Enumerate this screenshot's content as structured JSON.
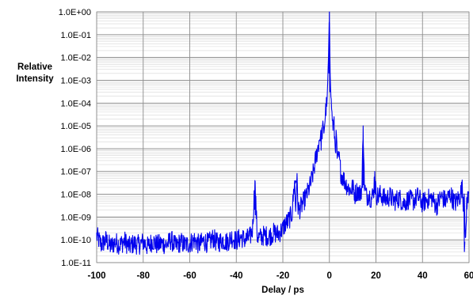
{
  "chart_data": {
    "type": "line",
    "xlabel": "Delay / ps",
    "ylabel_lines": [
      "Relative",
      "Intensity"
    ],
    "xlim": [
      -100,
      60
    ],
    "ylim": [
      1e-11,
      1
    ],
    "y_scale": "log",
    "grid": "major and minor",
    "x_ticks": [
      -100,
      -80,
      -60,
      -40,
      -20,
      0,
      20,
      40,
      60
    ],
    "x_tick_labels": [
      "-100",
      "-80",
      "-60",
      "-40",
      "-20",
      "0",
      "20",
      "40",
      "60"
    ],
    "y_ticks": [
      1,
      0.1,
      0.01,
      0.001,
      0.0001,
      1e-05,
      1e-06,
      1e-07,
      1e-08,
      1e-09,
      1e-10,
      1e-11
    ],
    "y_tick_labels": [
      "1.0E+00",
      "1.0E-01",
      "1.0E-02",
      "1.0E-03",
      "1.0E-04",
      "1.0E-05",
      "1.0E-06",
      "1.0E-07",
      "1.0E-08",
      "1.0E-09",
      "1.0E-10",
      "1.0E-11"
    ],
    "series_color": "#0000ee",
    "series": [
      {
        "x": [
          -100,
          -98,
          -96,
          -94,
          -92,
          -90,
          -88,
          -86,
          -84,
          -82,
          -80,
          -78,
          -76,
          -74,
          -72,
          -70,
          -68,
          -66,
          -64,
          -62,
          -60,
          -58,
          -56,
          -54,
          -52,
          -50,
          -48,
          -46,
          -44,
          -42,
          -40,
          -38,
          -36,
          -34,
          -33,
          -32,
          -31.5,
          -31,
          -30,
          -28,
          -26,
          -24,
          -22,
          -20,
          -19,
          -18,
          -17,
          -16,
          -15,
          -14.5,
          -14,
          -13.5,
          -13,
          -12,
          -11,
          -10,
          -9,
          -8,
          -7,
          -6,
          -5,
          -4,
          -3.5,
          -3,
          -2.5,
          -2,
          -1.5,
          -1,
          -0.6,
          -0.3,
          0,
          0.3,
          0.6,
          1,
          1.5,
          2,
          2.5,
          3,
          3.5,
          4,
          5,
          6,
          7,
          8,
          9,
          10,
          11,
          12,
          13,
          14,
          14.5,
          15,
          15.5,
          16,
          17,
          18,
          19,
          19.5,
          20,
          21,
          22,
          24,
          26,
          28,
          30,
          32,
          34,
          36,
          38,
          40,
          42,
          44,
          46,
          48,
          50,
          52,
          54,
          56,
          57,
          57.5,
          58,
          58.5,
          59,
          60
        ],
        "y": [
          1.5e-10,
          6e-11,
          1e-10,
          5e-11,
          8e-11,
          6e-11,
          9e-11,
          5e-11,
          7e-11,
          6e-11,
          8e-11,
          5e-11,
          9e-11,
          6e-11,
          7e-11,
          6e-11,
          1e-10,
          5e-11,
          8e-11,
          6e-11,
          7e-11,
          1e-10,
          6e-11,
          9e-11,
          7e-11,
          1.2e-10,
          7e-11,
          1e-10,
          8e-11,
          1.3e-10,
          9e-11,
          1.3e-10,
          1e-10,
          1.4e-10,
          3e-10,
          4e-08,
          2e-09,
          1.5e-10,
          1.2e-10,
          1.6e-10,
          1.4e-10,
          2e-10,
          1.8e-10,
          3e-10,
          5e-10,
          6e-10,
          9e-10,
          1.5e-09,
          4e-08,
          2e-09,
          6e-08,
          3e-09,
          2e-09,
          3e-09,
          5e-09,
          8e-09,
          1.5e-08,
          3e-08,
          8e-08,
          3e-07,
          1e-06,
          4e-06,
          2e-06,
          8e-06,
          5e-06,
          1.5e-05,
          6e-05,
          0.0001,
          0.002,
          0.02,
          1,
          0.003,
          0.0003,
          5e-05,
          1e-05,
          1e-05,
          1e-06,
          3e-06,
          2e-07,
          5e-07,
          8e-08,
          5e-08,
          3e-08,
          2e-08,
          1.5e-08,
          2e-08,
          1e-08,
          1.5e-08,
          1e-08,
          2e-08,
          1e-05,
          3e-08,
          1.2e-08,
          8e-09,
          1e-08,
          6e-09,
          1.2e-08,
          1e-07,
          1e-08,
          8e-09,
          1e-08,
          6e-09,
          8e-09,
          5e-09,
          7e-09,
          4e-09,
          6e-09,
          5e-09,
          8e-09,
          4e-09,
          6e-09,
          7e-09,
          3e-09,
          8e-09,
          5e-09,
          1e-08,
          4e-09,
          8e-09,
          2e-08,
          5e-09,
          1.5e-08,
          3e-11,
          5e-09,
          8e-09
        ]
      }
    ]
  }
}
